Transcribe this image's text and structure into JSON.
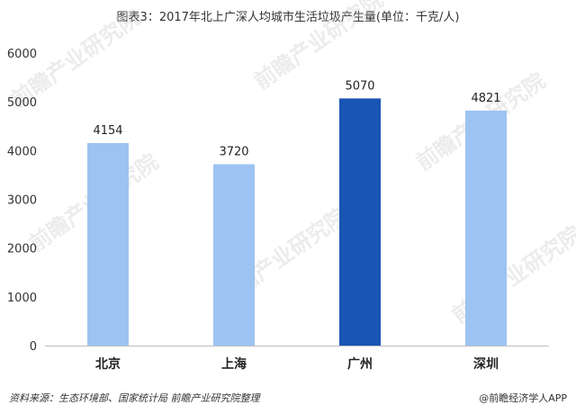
{
  "header": {
    "title": "图表3：2017年北上广深人均城市生活垃圾产生量(单位：千克/人)"
  },
  "chart_data": {
    "type": "bar",
    "title": "图表3：2017年北上广深人均城市生活垃圾产生量(单位：千克/人)",
    "categories": [
      "北京",
      "上海",
      "广州",
      "深圳"
    ],
    "values": [
      4154,
      3720,
      5070,
      4821
    ],
    "data_labels": [
      "4154",
      "3720",
      "5070",
      "4821"
    ],
    "ylim": [
      0,
      6000
    ],
    "yticks": [
      0,
      1000,
      2000,
      3000,
      4000,
      5000,
      6000
    ],
    "ytick_labels": [
      "0",
      "1000",
      "2000",
      "3000",
      "4000",
      "5000",
      "6000"
    ],
    "grid": false,
    "legend": "none",
    "colors": {
      "default_bar": "#9dc3f2",
      "highlight_bar": "#1955b3",
      "axis": "#bfbfbf"
    },
    "highlight_index": 2
  },
  "watermark": {
    "text": "前瞻产业研究院"
  },
  "footer": {
    "source": "资料来源：生态环境部、国家统计局 前瞻产业研究院整理",
    "brand": "@前瞻经济学人APP"
  }
}
